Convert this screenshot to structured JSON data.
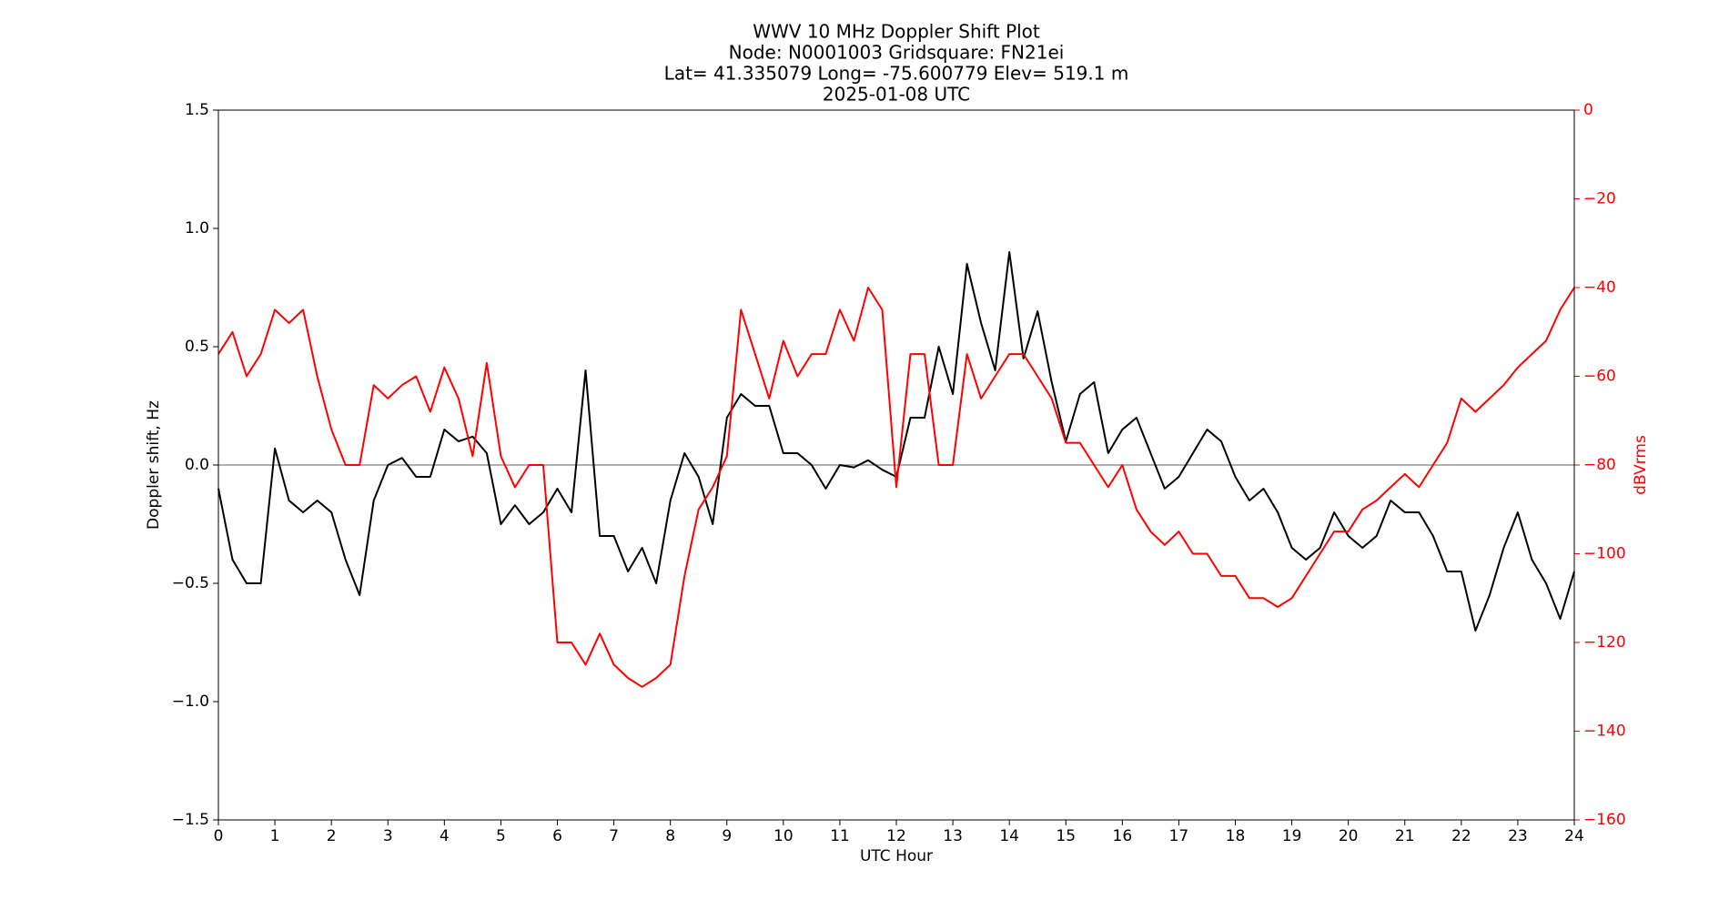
{
  "chart_data": {
    "type": "line",
    "title": [
      "WWV 10 MHz Doppler Shift Plot",
      "Node:  N0001003     Gridsquare:  FN21ei",
      "Lat= 41.335079    Long= -75.600779    Elev= 519.1 m",
      "2025-01-08  UTC"
    ],
    "xlabel": "UTC Hour",
    "ylabel": "Doppler shift, Hz",
    "y2label": "dBVrms",
    "x": [
      0,
      0.25,
      0.5,
      0.75,
      1,
      1.25,
      1.5,
      1.75,
      2,
      2.25,
      2.5,
      2.75,
      3,
      3.25,
      3.5,
      3.75,
      4,
      4.25,
      4.5,
      4.75,
      5,
      5.25,
      5.5,
      5.75,
      6,
      6.25,
      6.5,
      6.75,
      7,
      7.25,
      7.5,
      7.75,
      8,
      8.25,
      8.5,
      8.75,
      9,
      9.25,
      9.5,
      9.75,
      10,
      10.25,
      10.5,
      10.75,
      11,
      11.25,
      11.5,
      11.75,
      12,
      12.25,
      12.5,
      12.75,
      13,
      13.25,
      13.5,
      13.75,
      14,
      14.25,
      14.5,
      14.75,
      15,
      15.25,
      15.5,
      15.75,
      16,
      16.25,
      16.5,
      16.75,
      17,
      17.25,
      17.5,
      17.75,
      18,
      18.25,
      18.5,
      18.75,
      19,
      19.25,
      19.5,
      19.75,
      20,
      20.25,
      20.5,
      20.75,
      21,
      21.25,
      21.5,
      21.75,
      22,
      22.25,
      22.5,
      22.75,
      23,
      23.25,
      23.5,
      23.75,
      24
    ],
    "series": [
      {
        "name": "Doppler shift",
        "color": "#000000",
        "axis": "y",
        "values": [
          -0.1,
          -0.4,
          -0.5,
          -0.5,
          0.07,
          -0.15,
          -0.2,
          -0.15,
          -0.2,
          -0.4,
          -0.55,
          -0.15,
          0.0,
          0.03,
          -0.05,
          -0.05,
          0.15,
          0.1,
          0.12,
          0.05,
          -0.25,
          -0.17,
          -0.25,
          -0.2,
          -0.1,
          -0.2,
          0.4,
          -0.3,
          -0.3,
          -0.45,
          -0.35,
          -0.5,
          -0.15,
          0.05,
          -0.05,
          -0.25,
          0.2,
          0.3,
          0.25,
          0.25,
          0.05,
          0.05,
          0.0,
          -0.1,
          0.0,
          -0.01,
          0.02,
          -0.02,
          -0.05,
          0.2,
          0.2,
          0.5,
          0.3,
          0.85,
          0.6,
          0.4,
          0.9,
          0.45,
          0.65,
          0.35,
          0.1,
          0.3,
          0.35,
          0.05,
          0.15,
          0.2,
          0.05,
          -0.1,
          -0.05,
          0.05,
          0.15,
          0.1,
          -0.05,
          -0.15,
          -0.1,
          -0.2,
          -0.35,
          -0.4,
          -0.35,
          -0.2,
          -0.3,
          -0.35,
          -0.3,
          -0.15,
          -0.2,
          -0.2,
          -0.3,
          -0.45,
          -0.45,
          -0.7,
          -0.55,
          -0.35,
          -0.2,
          -0.4,
          -0.5,
          -0.65,
          -0.45
        ]
      },
      {
        "name": "dBVrms",
        "color": "#ff0000",
        "axis": "y2",
        "values": [
          -55,
          -50,
          -60,
          -55,
          -45,
          -48,
          -45,
          -60,
          -72,
          -80,
          -80,
          -62,
          -65,
          -62,
          -60,
          -68,
          -58,
          -65,
          -78,
          -57,
          -78,
          -85,
          -80,
          -80,
          -120,
          -120,
          -125,
          -118,
          -125,
          -128,
          -130,
          -128,
          -125,
          -105,
          -90,
          -85,
          -78,
          -45,
          -55,
          -65,
          -52,
          -60,
          -55,
          -55,
          -45,
          -52,
          -40,
          -45,
          -85,
          -55,
          -55,
          -80,
          -80,
          -55,
          -65,
          -60,
          -55,
          -55,
          -60,
          -65,
          -75,
          -75,
          -80,
          -85,
          -80,
          -90,
          -95,
          -98,
          -95,
          -100,
          -100,
          -105,
          -105,
          -110,
          -110,
          -112,
          -110,
          -105,
          -100,
          -95,
          -95,
          -90,
          -88,
          -85,
          -82,
          -85,
          -80,
          -75,
          -65,
          -68,
          -65,
          -62,
          -58,
          -55,
          -52,
          -45,
          -40
        ]
      }
    ],
    "hline": 0,
    "xlim": [
      0,
      24
    ],
    "xticks": [
      0,
      1,
      2,
      3,
      4,
      5,
      6,
      7,
      8,
      9,
      10,
      11,
      12,
      13,
      14,
      15,
      16,
      17,
      18,
      19,
      20,
      21,
      22,
      23,
      24
    ],
    "ylim": [
      -1.5,
      1.5
    ],
    "yticks": [
      {
        "value": -1.5,
        "label": "−1.5"
      },
      {
        "value": -1.0,
        "label": "−1.0"
      },
      {
        "value": -0.5,
        "label": "−0.5"
      },
      {
        "value": 0.0,
        "label": "0.0"
      },
      {
        "value": 0.5,
        "label": "0.5"
      },
      {
        "value": 1.0,
        "label": "1.0"
      },
      {
        "value": 1.5,
        "label": "1.5"
      }
    ],
    "y2lim": [
      -160,
      0
    ],
    "y2ticks": [
      {
        "value": -160,
        "label": "−160"
      },
      {
        "value": -140,
        "label": "−140"
      },
      {
        "value": -120,
        "label": "−120"
      },
      {
        "value": -100,
        "label": "−100"
      },
      {
        "value": -80,
        "label": "−80"
      },
      {
        "value": -60,
        "label": "−60"
      },
      {
        "value": -40,
        "label": "−40"
      },
      {
        "value": -20,
        "label": "−20"
      },
      0
    ],
    "y2color": "#ff0000",
    "grid": false
  }
}
